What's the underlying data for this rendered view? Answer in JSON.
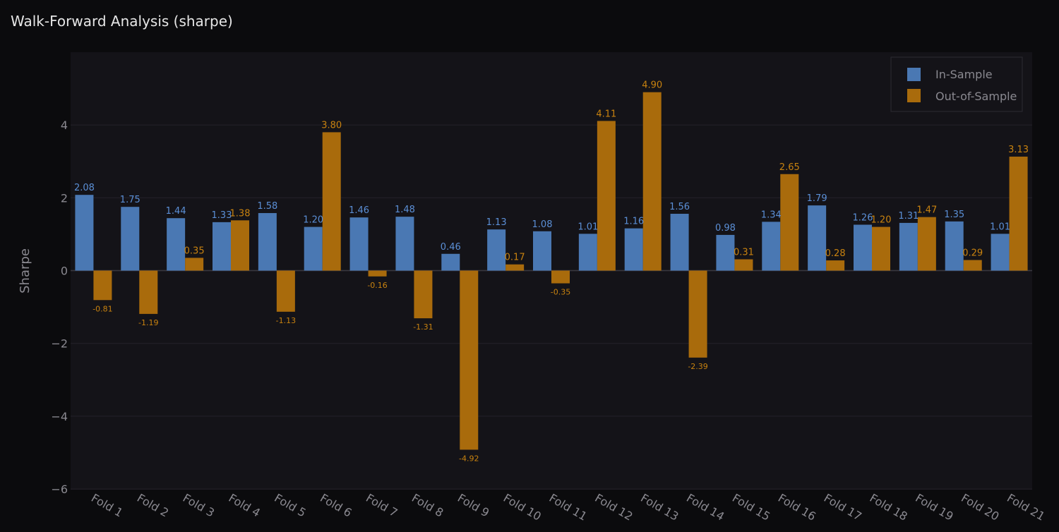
{
  "chart_data": {
    "type": "bar",
    "title": "Walk-Forward Analysis (sharpe)",
    "xlabel": "",
    "ylabel": "Sharpe",
    "ylim": [
      -6,
      6
    ],
    "yticks": [
      -6,
      -4,
      -2,
      0,
      2,
      4
    ],
    "ytick_labels": [
      "−6",
      "−4",
      "−2",
      "0",
      "2",
      "4"
    ],
    "grid": true,
    "legend_position": "top-right",
    "categories": [
      "Fold 1",
      "Fold 2",
      "Fold 3",
      "Fold 4",
      "Fold 5",
      "Fold 6",
      "Fold 7",
      "Fold 8",
      "Fold 9",
      "Fold 10",
      "Fold 11",
      "Fold 12",
      "Fold 13",
      "Fold 14",
      "Fold 15",
      "Fold 16",
      "Fold 17",
      "Fold 18",
      "Fold 19",
      "Fold 20",
      "Fold 21"
    ],
    "series": [
      {
        "name": "In-Sample",
        "color": "#4a78b3",
        "values": [
          2.08,
          1.75,
          1.44,
          1.33,
          1.58,
          1.2,
          1.46,
          1.48,
          0.46,
          1.13,
          1.08,
          1.01,
          1.16,
          1.56,
          0.98,
          1.34,
          1.79,
          1.26,
          1.31,
          1.35,
          1.01
        ],
        "labels": [
          "2.08",
          "1.75",
          "1.44",
          "1.33",
          "1.58",
          "1.20",
          "1.46",
          "1.48",
          "0.46",
          "1.13",
          "1.08",
          "1.01",
          "1.16",
          "1.56",
          "0.98",
          "1.34",
          "1.79",
          "1.26",
          "1.31",
          "1.35",
          "1.01"
        ]
      },
      {
        "name": "Out-of-Sample",
        "color": "#a96b0c",
        "values": [
          -0.81,
          -1.19,
          0.35,
          1.38,
          -1.13,
          3.8,
          -0.16,
          -1.31,
          -4.92,
          0.17,
          -0.35,
          4.11,
          4.9,
          -2.39,
          0.31,
          2.65,
          0.28,
          1.2,
          1.47,
          0.29,
          3.13
        ],
        "labels": [
          "-0.81",
          "-1.19",
          "0.35",
          "1.38",
          "-1.13",
          "3.80",
          "-0.16",
          "-1.31",
          "-4.92",
          "0.17",
          "-0.35",
          "4.11",
          "4.90",
          "-2.39",
          "0.31",
          "2.65",
          "0.28",
          "1.20",
          "1.47",
          "0.29",
          "3.13"
        ]
      }
    ]
  },
  "colors": {
    "page_background": "#0b0b0d",
    "plot_background": "#141318",
    "grid": "#24232a",
    "zero_line": "#3a3940",
    "axis_text": "#8a8990",
    "title_text": "#e6e6e6",
    "in_sample_label": "#5b8fd6",
    "out_sample_label": "#c8820f"
  }
}
